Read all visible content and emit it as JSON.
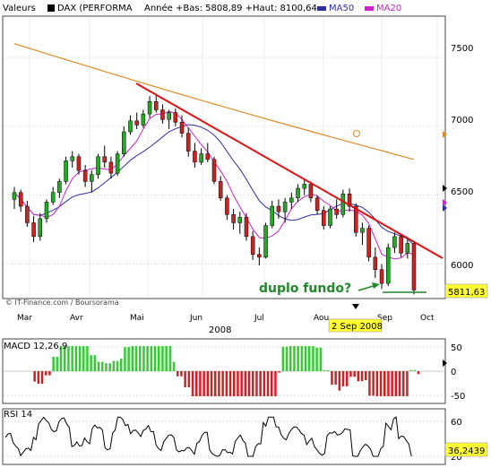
{
  "header": {
    "valeurs_label": "Valeurs",
    "instrument": "DAX (PERFORMA",
    "stats": "Année +Bas: 5808,89 +Haut: 8100,64",
    "ma50_label": "MA50",
    "ma20_label": "MA20"
  },
  "colors": {
    "up_candle": "#22aa22",
    "down_candle": "#cc2222",
    "ma50": "#2e2e9e",
    "ma20": "#cc22cc",
    "long_ma": "#e08b2a",
    "trendline": "#dd1111",
    "annotation": "#22882a",
    "macd_pos": "#33cc33",
    "macd_neg": "#cc2222",
    "price_tag_bg": "#ffff33"
  },
  "main": {
    "watermark": "© IT-Finance.com / Boursorama",
    "annotation_text": "duplo fundo?",
    "last_price_label": "5811,63",
    "date_tooltip": "2 Sep 2008"
  },
  "macd_panel": {
    "label": "MACD 12,26,9"
  },
  "rsi_panel": {
    "label": "RSI 14",
    "value_label": "36,2439"
  },
  "chart_data": {
    "type": "candlestick",
    "title": "DAX (PERFORMA",
    "x_ticks": [
      "Mar",
      "Avr",
      "Mai",
      "Jun",
      "Jul",
      "Aou",
      "Sep",
      "Oct"
    ],
    "year_label": "2008",
    "price_axis": {
      "ticks": [
        6000,
        6500,
        7000,
        7500
      ],
      "ylim": [
        5750,
        7800
      ]
    },
    "price_ticks_labels": [
      "6000",
      "6500",
      "7000",
      "7500"
    ],
    "macd_ticks": [
      "50",
      "0",
      "-50"
    ],
    "rsi_ticks": [
      "60",
      "20"
    ],
    "grid": true,
    "candles": [
      {
        "date": "Mar 04",
        "o": 6470,
        "h": 6560,
        "l": 6400,
        "c": 6520
      },
      {
        "date": "Mar 07",
        "o": 6520,
        "h": 6540,
        "l": 6380,
        "c": 6420
      },
      {
        "date": "Mar 10",
        "o": 6420,
        "h": 6460,
        "l": 6270,
        "c": 6300
      },
      {
        "date": "Mar 13",
        "o": 6300,
        "h": 6350,
        "l": 6160,
        "c": 6200
      },
      {
        "date": "Mar 17",
        "o": 6200,
        "h": 6370,
        "l": 6170,
        "c": 6330
      },
      {
        "date": "Mar 20",
        "o": 6330,
        "h": 6470,
        "l": 6300,
        "c": 6450
      },
      {
        "date": "Mar 25",
        "o": 6450,
        "h": 6560,
        "l": 6430,
        "c": 6520
      },
      {
        "date": "Mar 28",
        "o": 6520,
        "h": 6620,
        "l": 6480,
        "c": 6600
      },
      {
        "date": "Apr 02",
        "o": 6600,
        "h": 6780,
        "l": 6580,
        "c": 6750
      },
      {
        "date": "Apr 04",
        "o": 6750,
        "h": 6820,
        "l": 6700,
        "c": 6780
      },
      {
        "date": "Apr 08",
        "o": 6780,
        "h": 6800,
        "l": 6650,
        "c": 6680
      },
      {
        "date": "Apr 11",
        "o": 6680,
        "h": 6720,
        "l": 6560,
        "c": 6600
      },
      {
        "date": "Apr 15",
        "o": 6600,
        "h": 6680,
        "l": 6520,
        "c": 6650
      },
      {
        "date": "Apr 18",
        "o": 6650,
        "h": 6800,
        "l": 6620,
        "c": 6780
      },
      {
        "date": "Apr 22",
        "o": 6780,
        "h": 6860,
        "l": 6700,
        "c": 6740
      },
      {
        "date": "Apr 25",
        "o": 6740,
        "h": 6780,
        "l": 6620,
        "c": 6660
      },
      {
        "date": "Apr 29",
        "o": 6660,
        "h": 6820,
        "l": 6640,
        "c": 6800
      },
      {
        "date": "May 02",
        "o": 6800,
        "h": 7000,
        "l": 6780,
        "c": 6960
      },
      {
        "date": "May 06",
        "o": 6960,
        "h": 7080,
        "l": 6940,
        "c": 7040
      },
      {
        "date": "May 09",
        "o": 7040,
        "h": 7100,
        "l": 6980,
        "c": 7010
      },
      {
        "date": "May 13",
        "o": 7010,
        "h": 7120,
        "l": 6990,
        "c": 7090
      },
      {
        "date": "May 16",
        "o": 7090,
        "h": 7220,
        "l": 7060,
        "c": 7180
      },
      {
        "date": "May 20",
        "o": 7180,
        "h": 7230,
        "l": 7100,
        "c": 7120
      },
      {
        "date": "May 23",
        "o": 7120,
        "h": 7160,
        "l": 7020,
        "c": 7050
      },
      {
        "date": "May 27",
        "o": 7050,
        "h": 7120,
        "l": 6980,
        "c": 7100
      },
      {
        "date": "May 30",
        "o": 7100,
        "h": 7130,
        "l": 7000,
        "c": 7030
      },
      {
        "date": "Jun 03",
        "o": 7030,
        "h": 7080,
        "l": 6920,
        "c": 6950
      },
      {
        "date": "Jun 06",
        "o": 6950,
        "h": 6990,
        "l": 6780,
        "c": 6820
      },
      {
        "date": "Jun 10",
        "o": 6820,
        "h": 6880,
        "l": 6700,
        "c": 6740
      },
      {
        "date": "Jun 13",
        "o": 6740,
        "h": 6840,
        "l": 6720,
        "c": 6800
      },
      {
        "date": "Jun 17",
        "o": 6800,
        "h": 6880,
        "l": 6740,
        "c": 6760
      },
      {
        "date": "Jun 20",
        "o": 6760,
        "h": 6780,
        "l": 6580,
        "c": 6600
      },
      {
        "date": "Jun 24",
        "o": 6600,
        "h": 6640,
        "l": 6460,
        "c": 6480
      },
      {
        "date": "Jun 27",
        "o": 6480,
        "h": 6500,
        "l": 6320,
        "c": 6360
      },
      {
        "date": "Jul 01",
        "o": 6360,
        "h": 6400,
        "l": 6250,
        "c": 6300
      },
      {
        "date": "Jul 04",
        "o": 6300,
        "h": 6380,
        "l": 6220,
        "c": 6340
      },
      {
        "date": "Jul 08",
        "o": 6340,
        "h": 6370,
        "l": 6170,
        "c": 6200
      },
      {
        "date": "Jul 11",
        "o": 6200,
        "h": 6240,
        "l": 6030,
        "c": 6070
      },
      {
        "date": "Jul 15",
        "o": 6070,
        "h": 6120,
        "l": 5990,
        "c": 6050
      },
      {
        "date": "Jul 18",
        "o": 6050,
        "h": 6300,
        "l": 6040,
        "c": 6280
      },
      {
        "date": "Jul 22",
        "o": 6280,
        "h": 6460,
        "l": 6260,
        "c": 6420
      },
      {
        "date": "Jul 25",
        "o": 6420,
        "h": 6470,
        "l": 6330,
        "c": 6380
      },
      {
        "date": "Jul 29",
        "o": 6380,
        "h": 6480,
        "l": 6300,
        "c": 6450
      },
      {
        "date": "Aug 01",
        "o": 6450,
        "h": 6520,
        "l": 6400,
        "c": 6480
      },
      {
        "date": "Aug 05",
        "o": 6480,
        "h": 6580,
        "l": 6450,
        "c": 6550
      },
      {
        "date": "Aug 08",
        "o": 6550,
        "h": 6620,
        "l": 6500,
        "c": 6580
      },
      {
        "date": "Aug 12",
        "o": 6580,
        "h": 6600,
        "l": 6450,
        "c": 6480
      },
      {
        "date": "Aug 15",
        "o": 6480,
        "h": 6500,
        "l": 6360,
        "c": 6390
      },
      {
        "date": "Aug 19",
        "o": 6390,
        "h": 6420,
        "l": 6250,
        "c": 6280
      },
      {
        "date": "Aug 22",
        "o": 6280,
        "h": 6420,
        "l": 6260,
        "c": 6400
      },
      {
        "date": "Aug 26",
        "o": 6400,
        "h": 6470,
        "l": 6330,
        "c": 6360
      },
      {
        "date": "Aug 29",
        "o": 6360,
        "h": 6540,
        "l": 6340,
        "c": 6510
      },
      {
        "date": "Sep 02",
        "o": 6510,
        "h": 6550,
        "l": 6380,
        "c": 6420
      },
      {
        "date": "Sep 04",
        "o": 6420,
        "h": 6440,
        "l": 6200,
        "c": 6230
      },
      {
        "date": "Sep 08",
        "o": 6230,
        "h": 6300,
        "l": 6140,
        "c": 6260
      },
      {
        "date": "Sep 10",
        "o": 6260,
        "h": 6280,
        "l": 6020,
        "c": 6050
      },
      {
        "date": "Sep 12",
        "o": 6050,
        "h": 6120,
        "l": 5900,
        "c": 5960
      },
      {
        "date": "Sep 15",
        "o": 5960,
        "h": 6000,
        "l": 5820,
        "c": 5860
      },
      {
        "date": "Sep 17",
        "o": 5860,
        "h": 6150,
        "l": 5840,
        "c": 6120
      },
      {
        "date": "Sep 19",
        "o": 6120,
        "h": 6230,
        "l": 6080,
        "c": 6200
      },
      {
        "date": "Sep 23",
        "o": 6200,
        "h": 6220,
        "l": 6050,
        "c": 6080
      },
      {
        "date": "Sep 25",
        "o": 6080,
        "h": 6190,
        "l": 6040,
        "c": 6150
      },
      {
        "date": "Sep 29",
        "o": 6150,
        "h": 6160,
        "l": 5780,
        "c": 5812
      }
    ]
  }
}
